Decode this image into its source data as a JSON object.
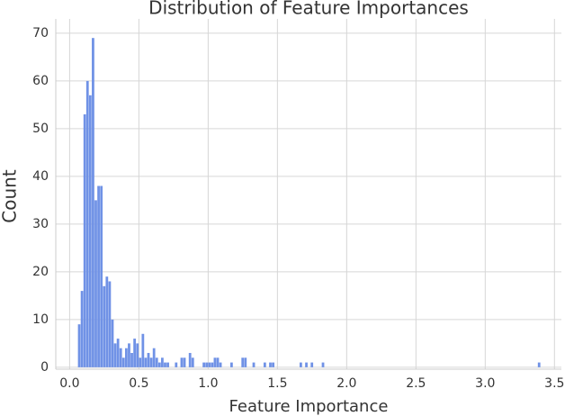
{
  "chart_data": {
    "type": "histogram",
    "title": "Distribution of Feature Importances",
    "x_label": "Feature Importance",
    "y_label": "Count",
    "color": "#7092e6",
    "bins": [
      0.06,
      0.08,
      0.1,
      0.12,
      0.14,
      0.16,
      0.18,
      0.2,
      0.22,
      0.24,
      0.26,
      0.28,
      0.3,
      0.32,
      0.34,
      0.36,
      0.38,
      0.4,
      0.42,
      0.44,
      0.46,
      0.48,
      0.5,
      0.52,
      0.54,
      0.56,
      0.58,
      0.6,
      0.62,
      0.64,
      0.66,
      0.68,
      0.7,
      0.72,
      0.74,
      0.76,
      0.78,
      0.8,
      0.82,
      0.84,
      0.86,
      0.88,
      0.9,
      0.92,
      0.94,
      0.96,
      0.98,
      1.0,
      1.02,
      1.04,
      1.06,
      1.08,
      1.1,
      1.12,
      1.14,
      1.16,
      1.18,
      1.2,
      1.22,
      1.24,
      1.26,
      1.28,
      1.3,
      1.32,
      1.34,
      1.36,
      1.38,
      1.4,
      1.42,
      1.44,
      1.46,
      1.48,
      1.5,
      1.52,
      1.54,
      1.56,
      1.58,
      1.6,
      1.62,
      1.64,
      1.66,
      1.68,
      1.7,
      1.72,
      1.74,
      1.76,
      1.78,
      1.8,
      1.82,
      1.84,
      3.38,
      3.4
    ],
    "values": [
      9,
      16,
      53,
      60,
      57,
      69,
      35,
      38,
      38,
      17,
      19,
      18,
      10,
      5,
      6,
      4,
      2,
      4,
      5,
      3,
      6,
      5,
      2,
      7,
      2,
      3,
      2,
      4,
      2,
      1,
      2,
      1,
      1,
      0,
      0,
      1,
      0,
      2,
      2,
      0,
      3,
      2,
      0,
      0,
      0,
      1,
      1,
      1,
      1,
      2,
      2,
      1,
      0,
      0,
      0,
      1,
      0,
      0,
      0,
      2,
      2,
      0,
      0,
      1,
      0,
      0,
      0,
      1,
      0,
      1,
      1,
      0,
      0,
      0,
      0,
      0,
      0,
      0,
      0,
      0,
      1,
      0,
      1,
      0,
      1,
      0,
      0,
      0,
      1,
      0,
      1
    ],
    "xlim": [
      -0.1,
      3.55
    ],
    "ylim": [
      -0.4,
      73
    ],
    "xticks": [
      {
        "value": 0,
        "label": "0.0"
      },
      {
        "value": 0.5,
        "label": "0.5"
      },
      {
        "value": 1,
        "label": "1.0"
      },
      {
        "value": 1.5,
        "label": "1.5"
      },
      {
        "value": 2,
        "label": "2.0"
      },
      {
        "value": 2.5,
        "label": "2.5"
      },
      {
        "value": 3,
        "label": "3.0"
      },
      {
        "value": 3.5,
        "label": "3.5"
      }
    ],
    "yticks": [
      0,
      10,
      20,
      30,
      40,
      50,
      60,
      70
    ],
    "grid": true
  }
}
